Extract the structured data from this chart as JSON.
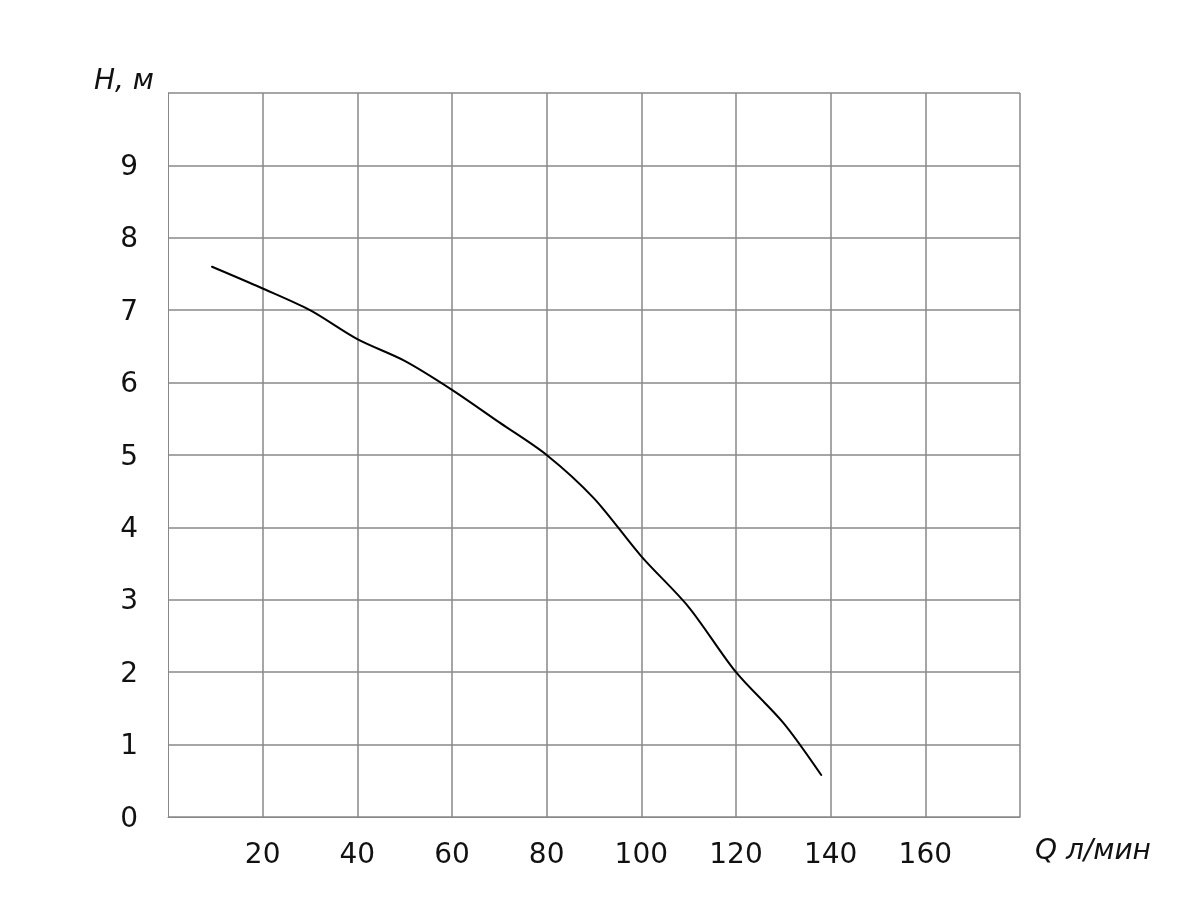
{
  "chart_data": {
    "type": "line",
    "xlabel": "Q л/мин",
    "ylabel": "H, м",
    "x": [
      9.3,
      20,
      30,
      40,
      50,
      60,
      70,
      80,
      90,
      100,
      110,
      120,
      130,
      138
    ],
    "series": [
      {
        "color": "#000000",
        "values": [
          7.6,
          7.3,
          7.0,
          6.6,
          6.3,
          5.9,
          5.45,
          5.0,
          4.4,
          3.6,
          2.9,
          2.0,
          1.3,
          0.58
        ]
      }
    ],
    "xlim": [
      0,
      180
    ],
    "ylim": [
      0,
      10
    ],
    "xticks": [
      20,
      40,
      60,
      80,
      100,
      120,
      140,
      160,
      {
        "value": 180,
        "label": null
      }
    ],
    "yticks": [
      0,
      1,
      2,
      3,
      4,
      5,
      6,
      7,
      8,
      9,
      {
        "value": 10,
        "label": null
      }
    ],
    "grid": true,
    "marker": "none",
    "line_style": "solid"
  }
}
